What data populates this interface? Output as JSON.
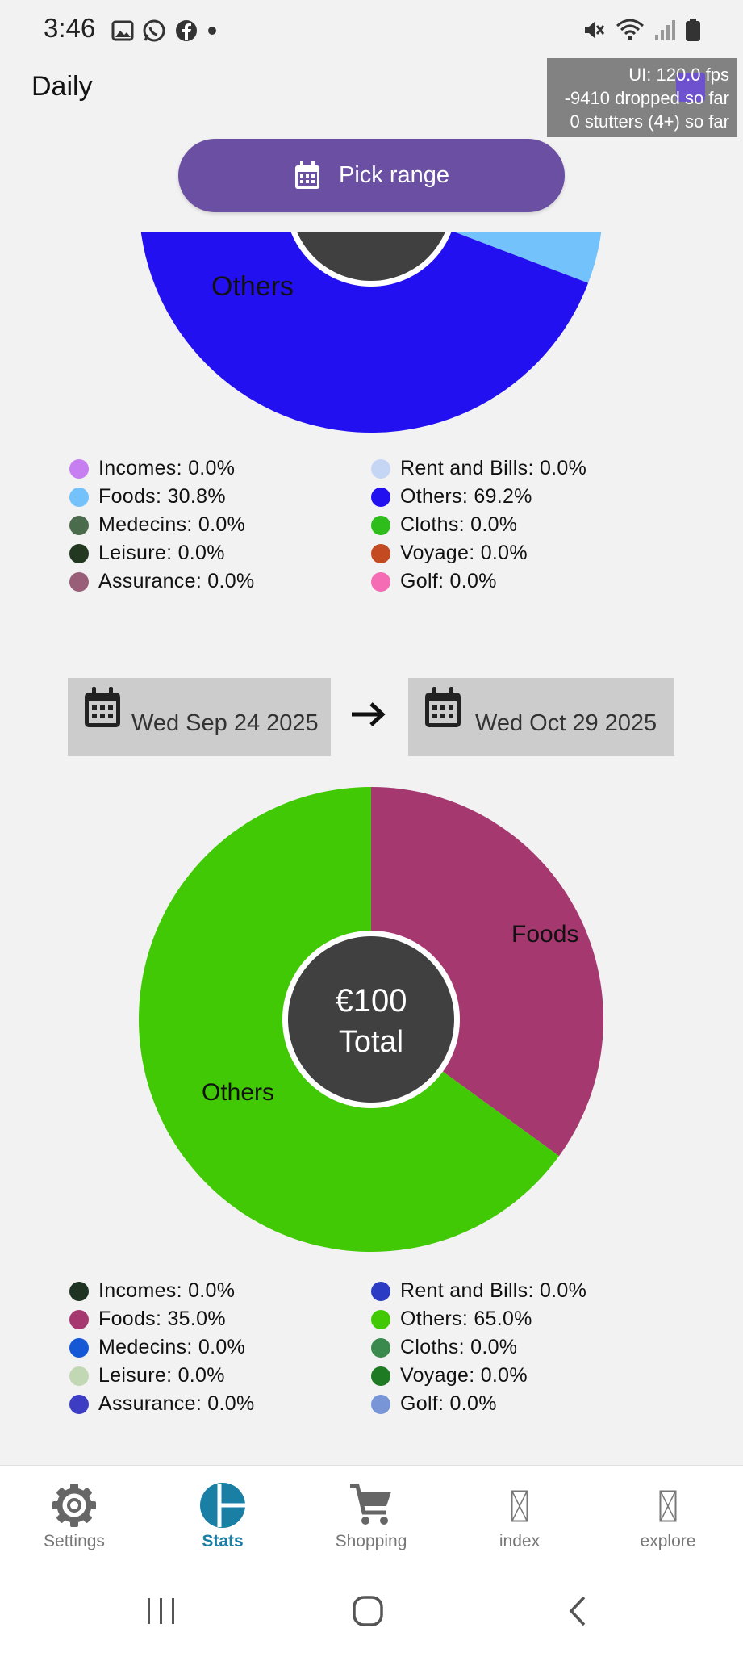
{
  "status_bar": {
    "time": "3:46"
  },
  "header": {
    "title": "Daily"
  },
  "perf_overlay": {
    "line1": "UI: 120.0 fps",
    "line2": "-9410 dropped so far",
    "line3": "0 stutters (4+) so far"
  },
  "pick_range": {
    "label": "Pick range"
  },
  "date_range": {
    "start": "Wed Sep 24 2025",
    "end": "Wed Oct 29 2025"
  },
  "chart_data": [
    {
      "type": "pie",
      "categories": [
        "Foods",
        "Others"
      ],
      "values": [
        30.8,
        69.2
      ],
      "colors": [
        "#73c2fb",
        "#2310f0"
      ],
      "slice_labels": [
        "",
        "Others"
      ]
    },
    {
      "type": "pie",
      "categories": [
        "Foods",
        "Others"
      ],
      "values": [
        35.0,
        65.0
      ],
      "colors": [
        "#a63870",
        "#40c904"
      ],
      "slice_labels": [
        "Foods",
        "Others"
      ],
      "center_amount": "€100",
      "center_label": "Total"
    }
  ],
  "legend1": [
    {
      "label": "Incomes: 0.0%",
      "color": "#c77ef0"
    },
    {
      "label": "Rent and Bills: 0.0%",
      "color": "#c5d6f5"
    },
    {
      "label": "Foods: 30.8%",
      "color": "#73c2fb"
    },
    {
      "label": "Others: 69.2%",
      "color": "#2310f0"
    },
    {
      "label": "Medecins: 0.0%",
      "color": "#4a6b4c"
    },
    {
      "label": "Cloths: 0.0%",
      "color": "#2ebd1a"
    },
    {
      "label": "Leisure: 0.0%",
      "color": "#223820"
    },
    {
      "label": "Voyage: 0.0%",
      "color": "#c44a22"
    },
    {
      "label": "Assurance: 0.0%",
      "color": "#9a5f78"
    },
    {
      "label": "Golf: 0.0%",
      "color": "#f56cb5"
    }
  ],
  "legend2": [
    {
      "label": "Incomes: 0.0%",
      "color": "#1e3322"
    },
    {
      "label": "Rent and Bills: 0.0%",
      "color": "#2b3bc4"
    },
    {
      "label": "Foods: 35.0%",
      "color": "#a63870"
    },
    {
      "label": "Others: 65.0%",
      "color": "#40c904"
    },
    {
      "label": "Medecins: 0.0%",
      "color": "#1558d6"
    },
    {
      "label": "Cloths: 0.0%",
      "color": "#3a8a4e"
    },
    {
      "label": "Leisure: 0.0%",
      "color": "#c2d8b5"
    },
    {
      "label": "Voyage: 0.0%",
      "color": "#1e7a23"
    },
    {
      "label": "Assurance: 0.0%",
      "color": "#3d3dc4"
    },
    {
      "label": "Golf: 0.0%",
      "color": "#7895d8"
    }
  ],
  "nav": {
    "items": [
      {
        "label": "Settings",
        "icon": "gear-icon"
      },
      {
        "label": "Stats",
        "icon": "pie-chart-icon",
        "active": true
      },
      {
        "label": "Shopping",
        "icon": "cart-icon"
      },
      {
        "label": "index",
        "icon": "missing-glyph-icon"
      },
      {
        "label": "explore",
        "icon": "missing-glyph-icon"
      }
    ]
  }
}
